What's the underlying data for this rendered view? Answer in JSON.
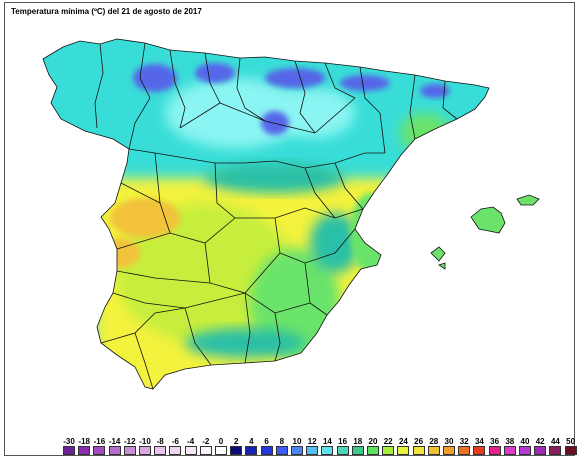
{
  "map": {
    "title": "Temperatura mínima (ºC) del 21 de agosto de 2017",
    "colors": {
      "sea": "#ffffff",
      "cyan": "#39ddd7",
      "light_cyan": "#8af5f2",
      "blue": "#5566e8",
      "teal": "#2bbfa6",
      "green": "#6be36a",
      "yellow_green": "#c7ee3e",
      "yellow": "#f3f23c",
      "orange": "#f2c23a",
      "border": "#111111"
    }
  },
  "legend": {
    "labels": [
      "-30",
      "-18",
      "-16",
      "-14",
      "-12",
      "-10",
      "-8",
      "-6",
      "-4",
      "-2",
      "0",
      "2",
      "4",
      "6",
      "8",
      "10",
      "12",
      "14",
      "16",
      "18",
      "20",
      "22",
      "24",
      "26",
      "28",
      "30",
      "32",
      "34",
      "36",
      "38",
      "40",
      "42",
      "44",
      "50"
    ],
    "colors": [
      "#6e1f9b",
      "#8a2fb0",
      "#a24cc0",
      "#b86cce",
      "#c98dd9",
      "#d9a8e0",
      "#e7c2ea",
      "#efd7f0",
      "#f5e7f5",
      "#fbf5fb",
      "#ffffff",
      "#0a0a7a",
      "#1a22b5",
      "#2438e0",
      "#3a5cf0",
      "#4e85f6",
      "#59c0f7",
      "#5fe2ef",
      "#4fd7b9",
      "#3cc989",
      "#5ee35c",
      "#a8ef3a",
      "#e6f53b",
      "#f4e23a",
      "#f3c132",
      "#f19e2c",
      "#ef6f25",
      "#ea3b1f",
      "#e3238a",
      "#d93ac6",
      "#b43ad1",
      "#a02bb8",
      "#8c1e5c",
      "#6b1020"
    ]
  }
}
